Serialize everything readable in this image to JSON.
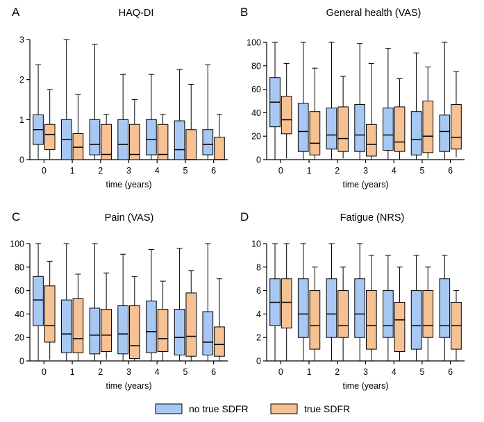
{
  "figure": {
    "colors": {
      "group1": "#a8c8f4",
      "group2": "#f6c193",
      "stroke": "#000000"
    },
    "legend": [
      {
        "name": "no true SDFR",
        "color": "#a8c8f4"
      },
      {
        "name": "true SDFR",
        "color": "#f6c193"
      }
    ]
  },
  "chart_data": [
    {
      "type": "boxplot",
      "panel_letter": "A",
      "title": "HAQ-DI",
      "xlabel": "time (years)",
      "ylabel": "",
      "categories": [
        "0",
        "1",
        "2",
        "3",
        "4",
        "5",
        "6"
      ],
      "ylim": [
        0,
        3
      ],
      "yticks": [
        0,
        1,
        2,
        3
      ],
      "series": [
        {
          "name": "no true SDFR",
          "boxes": [
            {
              "min": 0,
              "q1": 0.38,
              "median": 0.75,
              "q3": 1.12,
              "max": 2.37
            },
            {
              "min": 0,
              "q1": 0,
              "median": 0.5,
              "q3": 1.0,
              "max": 3.0
            },
            {
              "min": 0,
              "q1": 0.12,
              "median": 0.38,
              "q3": 1.0,
              "max": 2.88
            },
            {
              "min": 0,
              "q1": 0,
              "median": 0.38,
              "q3": 1.0,
              "max": 2.13
            },
            {
              "min": 0,
              "q1": 0.12,
              "median": 0.5,
              "q3": 1.0,
              "max": 2.13
            },
            {
              "min": 0,
              "q1": 0,
              "median": 0.25,
              "q3": 0.97,
              "max": 2.25
            },
            {
              "min": 0,
              "q1": 0.12,
              "median": 0.38,
              "q3": 0.75,
              "max": 2.37
            }
          ]
        },
        {
          "name": "true SDFR",
          "boxes": [
            {
              "min": 0,
              "q1": 0.25,
              "median": 0.63,
              "q3": 0.88,
              "max": 1.75
            },
            {
              "min": 0,
              "q1": 0,
              "median": 0.31,
              "q3": 0.65,
              "max": 1.63
            },
            {
              "min": 0,
              "q1": 0,
              "median": 0.13,
              "q3": 0.88,
              "max": 1.13
            },
            {
              "min": 0,
              "q1": 0,
              "median": 0.13,
              "q3": 0.88,
              "max": 1.5
            },
            {
              "min": 0,
              "q1": 0,
              "median": 0.13,
              "q3": 0.88,
              "max": 1.13
            },
            {
              "min": 0,
              "q1": 0,
              "median": 0,
              "q3": 0.75,
              "max": 1.88
            },
            {
              "min": 0,
              "q1": 0,
              "median": 0,
              "q3": 0.56,
              "max": 1.13
            }
          ]
        }
      ]
    },
    {
      "type": "boxplot",
      "panel_letter": "B",
      "title": "General health (VAS)",
      "xlabel": "time (years)",
      "ylabel": "",
      "categories": [
        "0",
        "1",
        "2",
        "3",
        "4",
        "5",
        "6"
      ],
      "ylim": [
        0,
        100
      ],
      "yticks": [
        0,
        20,
        40,
        60,
        80,
        100
      ],
      "series": [
        {
          "name": "no true SDFR",
          "boxes": [
            {
              "min": 0,
              "q1": 28,
              "median": 49,
              "q3": 70,
              "max": 100
            },
            {
              "min": 0,
              "q1": 7,
              "median": 24,
              "q3": 48,
              "max": 100
            },
            {
              "min": 0,
              "q1": 9,
              "median": 21,
              "q3": 44,
              "max": 100
            },
            {
              "min": 0,
              "q1": 7,
              "median": 21,
              "q3": 47,
              "max": 99
            },
            {
              "min": 0,
              "q1": 8,
              "median": 21,
              "q3": 44,
              "max": 95
            },
            {
              "min": 0,
              "q1": 4,
              "median": 17,
              "q3": 41,
              "max": 91
            },
            {
              "min": 0,
              "q1": 7,
              "median": 24,
              "q3": 38,
              "max": 100
            }
          ]
        },
        {
          "name": "true SDFR",
          "boxes": [
            {
              "min": 1,
              "q1": 22,
              "median": 34,
              "q3": 54,
              "max": 82
            },
            {
              "min": 0,
              "q1": 4,
              "median": 14,
              "q3": 41,
              "max": 78
            },
            {
              "min": 1,
              "q1": 7,
              "median": 18,
              "q3": 45,
              "max": 71
            },
            {
              "min": 0,
              "q1": 3,
              "median": 13,
              "q3": 30,
              "max": 82
            },
            {
              "min": 0,
              "q1": 7,
              "median": 15,
              "q3": 45,
              "max": 69
            },
            {
              "min": 1,
              "q1": 6,
              "median": 20,
              "q3": 50,
              "max": 79
            },
            {
              "min": 2,
              "q1": 9,
              "median": 19,
              "q3": 47,
              "max": 75
            }
          ]
        }
      ]
    },
    {
      "type": "boxplot",
      "panel_letter": "C",
      "title": "Pain (VAS)",
      "xlabel": "time (years)",
      "ylabel": "",
      "categories": [
        "0",
        "1",
        "2",
        "3",
        "4",
        "5",
        "6"
      ],
      "ylim": [
        0,
        100
      ],
      "yticks": [
        0,
        20,
        40,
        60,
        80,
        100
      ],
      "series": [
        {
          "name": "no true SDFR",
          "boxes": [
            {
              "min": 0,
              "q1": 30,
              "median": 52,
              "q3": 72,
              "max": 100
            },
            {
              "min": 0,
              "q1": 7,
              "median": 23,
              "q3": 52,
              "max": 100
            },
            {
              "min": 0,
              "q1": 6,
              "median": 22,
              "q3": 45,
              "max": 100
            },
            {
              "min": 0,
              "q1": 6,
              "median": 23,
              "q3": 47,
              "max": 91
            },
            {
              "min": 0,
              "q1": 7,
              "median": 25,
              "q3": 51,
              "max": 95
            },
            {
              "min": 0,
              "q1": 5,
              "median": 20,
              "q3": 44,
              "max": 96
            },
            {
              "min": 0,
              "q1": 5,
              "median": 16,
              "q3": 42,
              "max": 100
            }
          ]
        },
        {
          "name": "true SDFR",
          "boxes": [
            {
              "min": 1,
              "q1": 16,
              "median": 30,
              "q3": 64,
              "max": 85
            },
            {
              "min": 0,
              "q1": 7,
              "median": 19,
              "q3": 53,
              "max": 74
            },
            {
              "min": 1,
              "q1": 8,
              "median": 22,
              "q3": 44,
              "max": 75
            },
            {
              "min": 0,
              "q1": 2,
              "median": 13,
              "q3": 47,
              "max": 72
            },
            {
              "min": 0,
              "q1": 8,
              "median": 19,
              "q3": 44,
              "max": 68
            },
            {
              "min": 0,
              "q1": 4,
              "median": 21,
              "q3": 58,
              "max": 77
            },
            {
              "min": 0,
              "q1": 4,
              "median": 14,
              "q3": 29,
              "max": 70
            }
          ]
        }
      ]
    },
    {
      "type": "boxplot",
      "panel_letter": "D",
      "title": "Fatigue (NRS)",
      "xlabel": "time (years)",
      "ylabel": "",
      "categories": [
        "0",
        "1",
        "2",
        "3",
        "4",
        "5",
        "6"
      ],
      "ylim": [
        0,
        10
      ],
      "yticks": [
        0,
        2,
        4,
        6,
        8,
        10
      ],
      "series": [
        {
          "name": "no true SDFR",
          "boxes": [
            {
              "min": 0,
              "q1": 3,
              "median": 5,
              "q3": 7,
              "max": 10
            },
            {
              "min": 0,
              "q1": 2,
              "median": 4,
              "q3": 7,
              "max": 10
            },
            {
              "min": 0,
              "q1": 2,
              "median": 4,
              "q3": 7,
              "max": 10
            },
            {
              "min": 0,
              "q1": 2,
              "median": 4,
              "q3": 7,
              "max": 10
            },
            {
              "min": 0,
              "q1": 2,
              "median": 3,
              "q3": 6,
              "max": 9
            },
            {
              "min": 0,
              "q1": 1,
              "median": 3,
              "q3": 6,
              "max": 9
            },
            {
              "min": 0,
              "q1": 2,
              "median": 3,
              "q3": 7,
              "max": 9
            }
          ]
        },
        {
          "name": "true SDFR",
          "boxes": [
            {
              "min": 0,
              "q1": 2.8,
              "median": 5,
              "q3": 7,
              "max": 10
            },
            {
              "min": 0,
              "q1": 1,
              "median": 3,
              "q3": 6,
              "max": 8
            },
            {
              "min": 0,
              "q1": 2,
              "median": 3,
              "q3": 6,
              "max": 8
            },
            {
              "min": 0,
              "q1": 1,
              "median": 3,
              "q3": 6,
              "max": 9
            },
            {
              "min": 0,
              "q1": 0.8,
              "median": 3.5,
              "q3": 5,
              "max": 8
            },
            {
              "min": 0,
              "q1": 2,
              "median": 3,
              "q3": 6,
              "max": 8
            },
            {
              "min": 0,
              "q1": 1,
              "median": 3,
              "q3": 5,
              "max": 6
            }
          ]
        }
      ]
    }
  ]
}
